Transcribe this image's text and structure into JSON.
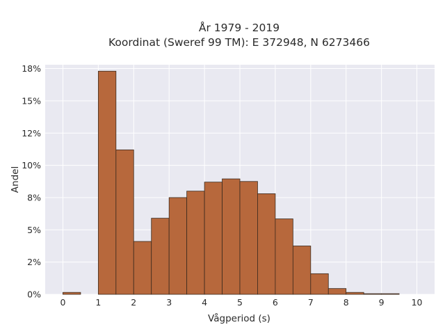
{
  "chart_data": {
    "type": "bar",
    "title_lines": [
      "År 1979 - 2019",
      "Koordinat (Sweref 99 TM): E 372948, N 6273466"
    ],
    "xlabel": "Vågperiod (s)",
    "ylabel": "Andel",
    "xlim": [
      -0.5,
      10.5
    ],
    "ylim": [
      0,
      17.8
    ],
    "x_ticks": [
      0,
      1,
      2,
      3,
      4,
      5,
      6,
      7,
      8,
      9,
      10
    ],
    "y_ticks": [
      0,
      2.5,
      5,
      7.5,
      10,
      12.5,
      15,
      17.5
    ],
    "y_tick_labels": [
      "0%",
      "2%",
      "5%",
      "8%",
      "10%",
      "12%",
      "15%",
      "18%"
    ],
    "bin_width": 0.5,
    "bins": [
      {
        "x0": 0.0,
        "value": 0.15
      },
      {
        "x0": 0.5,
        "value": 0.0
      },
      {
        "x0": 1.0,
        "value": 17.3
      },
      {
        "x0": 1.5,
        "value": 11.2
      },
      {
        "x0": 2.0,
        "value": 4.1
      },
      {
        "x0": 2.5,
        "value": 5.9
      },
      {
        "x0": 3.0,
        "value": 7.5
      },
      {
        "x0": 3.5,
        "value": 8.0
      },
      {
        "x0": 4.0,
        "value": 8.7
      },
      {
        "x0": 4.5,
        "value": 8.95
      },
      {
        "x0": 5.0,
        "value": 8.75
      },
      {
        "x0": 5.5,
        "value": 7.8
      },
      {
        "x0": 6.0,
        "value": 5.85
      },
      {
        "x0": 6.5,
        "value": 3.75
      },
      {
        "x0": 7.0,
        "value": 1.6
      },
      {
        "x0": 7.5,
        "value": 0.45
      },
      {
        "x0": 8.0,
        "value": 0.15
      },
      {
        "x0": 8.5,
        "value": 0.05
      },
      {
        "x0": 9.0,
        "value": 0.05
      },
      {
        "x0": 9.5,
        "value": 0.0
      }
    ],
    "bar_color": "#b7683c",
    "bar_edge_color": "#3a2a1e",
    "plot_background": "#e9e9f1",
    "grid": true,
    "grid_color": "#ffffff",
    "legend": "none"
  }
}
